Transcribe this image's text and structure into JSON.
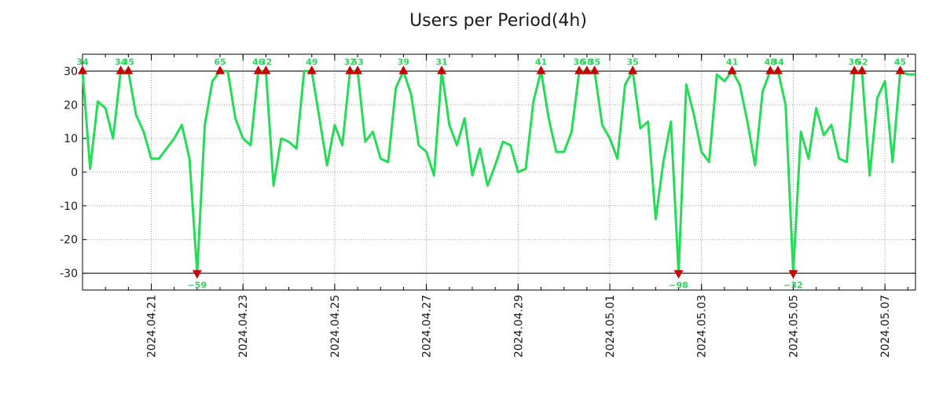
{
  "chart_data": {
    "type": "line",
    "title": "Users per Period(4h)",
    "xlabel": "",
    "ylabel": "",
    "ylim": [
      -35,
      35
    ],
    "y_ticks": [
      30,
      20,
      10,
      0,
      -10,
      -20,
      -30
    ],
    "y_tick_labels": [
      "30",
      "20",
      "10",
      "0",
      "-10",
      "-20",
      "-30"
    ],
    "x_tick_labels": [
      "2024.04.21",
      "2024.04.23",
      "2024.04.25",
      "2024.04.27",
      "2024.04.29",
      "2024.05.01",
      "2024.05.03",
      "2024.05.05",
      "2024.05.07"
    ],
    "x_tick_index": [
      9,
      21,
      33,
      45,
      57,
      69,
      81,
      93,
      105
    ],
    "x_minor_index": [
      0,
      3,
      6,
      9,
      12,
      15,
      18,
      21,
      24,
      27,
      30,
      33,
      36,
      39,
      42,
      45,
      48,
      51,
      54,
      57,
      60,
      63,
      66,
      69,
      72,
      75,
      78,
      81,
      84,
      87,
      90,
      93,
      96,
      99,
      102,
      105,
      108
    ],
    "x_range": [
      0,
      109
    ],
    "clip_lines": [
      30,
      -30
    ],
    "grid": true,
    "line_color": "#22dd55",
    "marker_color": "#cc0000",
    "series": [
      {
        "name": "Users",
        "values": [
          30,
          1,
          21,
          19,
          10,
          30,
          30,
          17,
          12,
          4,
          4,
          7,
          10,
          14,
          4,
          -30,
          14,
          27,
          30,
          30,
          16,
          10,
          8,
          30,
          30,
          -4,
          10,
          9,
          7,
          30,
          30,
          16,
          2,
          14,
          8,
          30,
          30,
          9,
          12,
          4,
          3,
          25,
          30,
          23,
          8,
          6,
          -1,
          30,
          14,
          8,
          16,
          -1,
          7,
          -4,
          2,
          9,
          8,
          0,
          1,
          21,
          30,
          16,
          6,
          6,
          12,
          30,
          30,
          30,
          14,
          10,
          4,
          26,
          30,
          13,
          15,
          -14,
          3,
          15,
          -30,
          26,
          17,
          6,
          3,
          29,
          27,
          30,
          26,
          15,
          2,
          24,
          30,
          30,
          20,
          -30,
          12,
          4,
          19,
          11,
          14,
          4,
          3,
          30,
          30,
          -1,
          22,
          27,
          3,
          30,
          29,
          29
        ]
      }
    ],
    "peaks": [
      {
        "i": 0,
        "label": "34",
        "dir": "up"
      },
      {
        "i": 5,
        "label": "34",
        "dir": "up"
      },
      {
        "i": 6,
        "label": "35",
        "dir": "up"
      },
      {
        "i": 15,
        "label": "−59",
        "dir": "down"
      },
      {
        "i": 18,
        "label": "65",
        "dir": "up"
      },
      {
        "i": 23,
        "label": "46",
        "dir": "up"
      },
      {
        "i": 24,
        "label": "32",
        "dir": "up"
      },
      {
        "i": 30,
        "label": "49",
        "dir": "up"
      },
      {
        "i": 35,
        "label": "32",
        "dir": "up"
      },
      {
        "i": 36,
        "label": "53",
        "dir": "up"
      },
      {
        "i": 42,
        "label": "39",
        "dir": "up"
      },
      {
        "i": 47,
        "label": "31",
        "dir": "up"
      },
      {
        "i": 60,
        "label": "41",
        "dir": "up"
      },
      {
        "i": 65,
        "label": "36",
        "dir": "up"
      },
      {
        "i": 66,
        "label": "58",
        "dir": "up"
      },
      {
        "i": 67,
        "label": "35",
        "dir": "up"
      },
      {
        "i": 72,
        "label": "35",
        "dir": "up"
      },
      {
        "i": 78,
        "label": "−98",
        "dir": "down"
      },
      {
        "i": 85,
        "label": "41",
        "dir": "up"
      },
      {
        "i": 90,
        "label": "48",
        "dir": "up"
      },
      {
        "i": 91,
        "label": "34",
        "dir": "up"
      },
      {
        "i": 93,
        "label": "−32",
        "dir": "down"
      },
      {
        "i": 101,
        "label": "36",
        "dir": "up"
      },
      {
        "i": 102,
        "label": "52",
        "dir": "up"
      },
      {
        "i": 107,
        "label": "45",
        "dir": "up"
      }
    ]
  }
}
